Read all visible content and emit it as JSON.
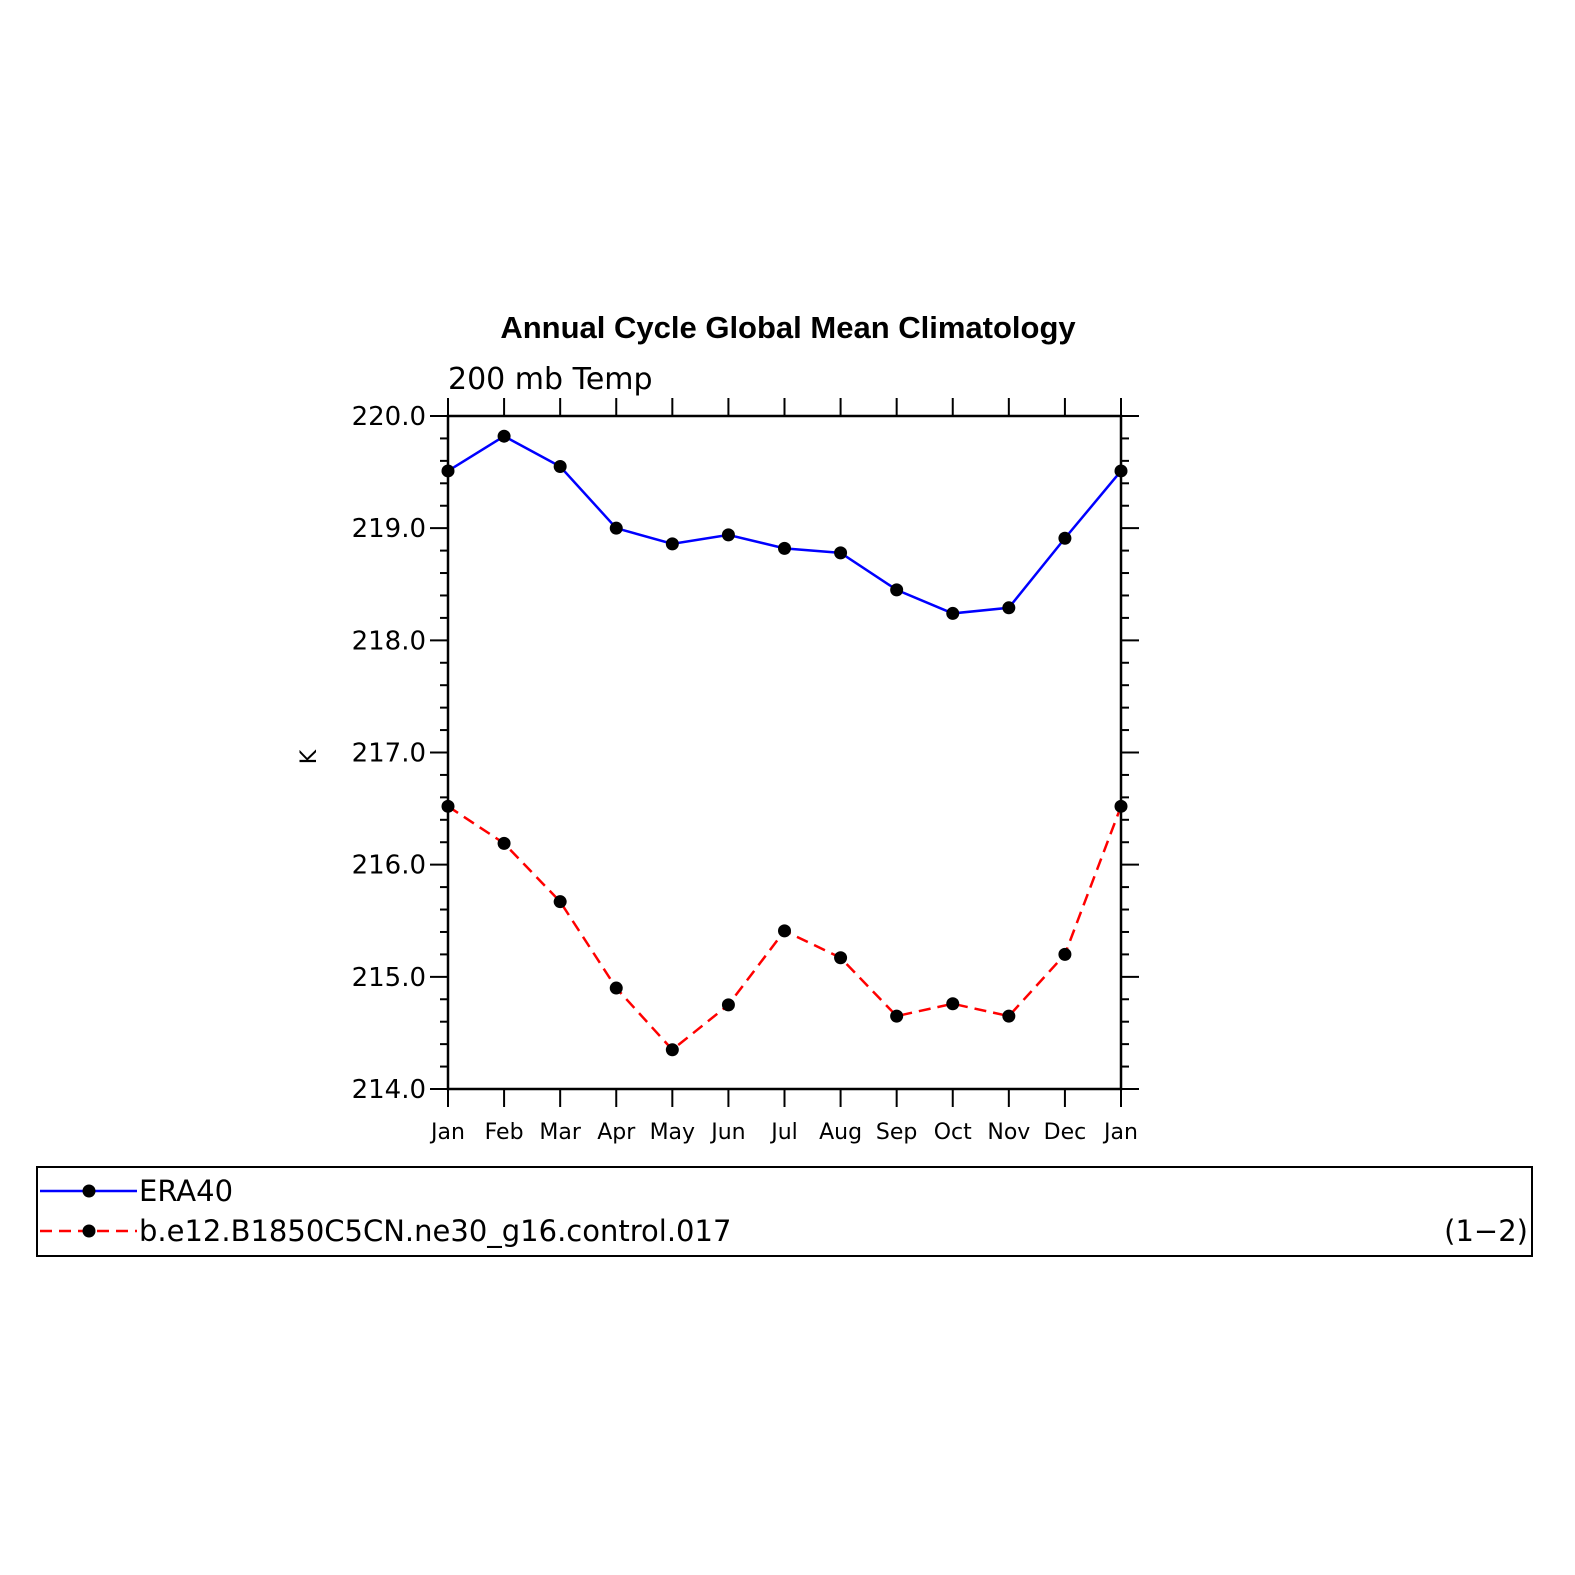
{
  "chart_data": {
    "type": "line",
    "title": "Annual Cycle Global Mean Climatology",
    "subtitle": "200 mb Temp",
    "xlabel": "",
    "ylabel": "K",
    "ylim": [
      214.0,
      220.0
    ],
    "yticks": [
      "214.0",
      "215.0",
      "216.0",
      "217.0",
      "218.0",
      "219.0",
      "220.0"
    ],
    "categories": [
      "Jan",
      "Feb",
      "Mar",
      "Apr",
      "May",
      "Jun",
      "Jul",
      "Aug",
      "Sep",
      "Oct",
      "Nov",
      "Dec",
      "Jan"
    ],
    "series": [
      {
        "name": "ERA40",
        "color": "#0000ff",
        "dash": "solid",
        "values": [
          219.51,
          219.82,
          219.55,
          219.0,
          218.86,
          218.94,
          218.82,
          218.78,
          218.45,
          218.24,
          218.29,
          218.91,
          219.51
        ]
      },
      {
        "name": "b.e12.B1850C5CN.ne30_g16.control.017",
        "color": "#ff0000",
        "dash": "dashed",
        "values": [
          216.52,
          216.19,
          215.67,
          214.9,
          214.35,
          214.75,
          215.41,
          215.17,
          214.65,
          214.76,
          214.65,
          215.2,
          216.52
        ]
      }
    ],
    "legend": {
      "placement": "bottom",
      "note": "(1−2)"
    },
    "grid": false
  }
}
